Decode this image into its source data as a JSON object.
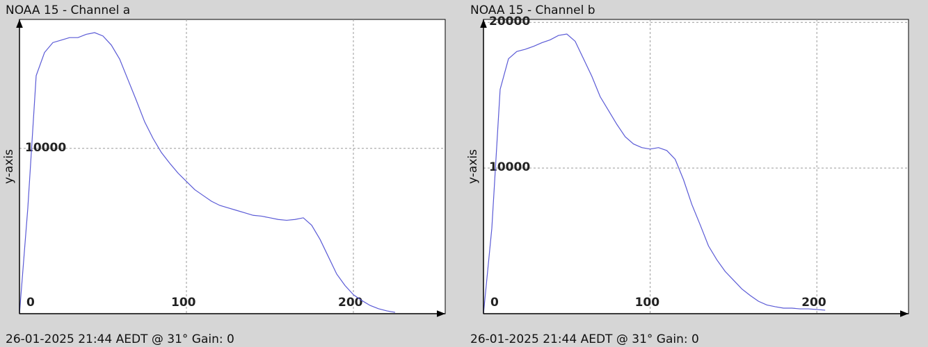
{
  "chart_data": [
    {
      "type": "line",
      "title": "NOAA 15 - Channel a",
      "ylabel": "y-axis",
      "footer": "26-01-2025 21:44 AEDT @ 31° Gain: 0",
      "x": [
        0,
        5,
        10,
        15,
        20,
        25,
        30,
        35,
        40,
        45,
        50,
        55,
        60,
        65,
        70,
        75,
        80,
        85,
        90,
        95,
        100,
        105,
        110,
        115,
        120,
        125,
        130,
        135,
        140,
        145,
        150,
        155,
        160,
        165,
        170,
        175,
        180,
        185,
        190,
        195,
        200,
        205,
        210,
        215,
        220,
        225
      ],
      "series": [
        {
          "color": "#5a5ad6",
          "values": [
            0,
            6400,
            14400,
            15800,
            16400,
            16550,
            16700,
            16700,
            16900,
            17000,
            16800,
            16250,
            15400,
            14150,
            12900,
            11600,
            10600,
            9750,
            9100,
            8500,
            8000,
            7500,
            7150,
            6800,
            6550,
            6400,
            6250,
            6100,
            5950,
            5900,
            5800,
            5700,
            5650,
            5700,
            5800,
            5350,
            4500,
            3450,
            2400,
            1700,
            1150,
            800,
            500,
            300,
            170,
            80
          ]
        }
      ],
      "xlim": [
        0,
        255
      ],
      "ylim": [
        0,
        17800
      ],
      "xticks": [
        0,
        100,
        200
      ],
      "yticks": [
        10000
      ],
      "grid": true
    },
    {
      "type": "line",
      "title": "NOAA 15 - Channel b",
      "ylabel": "y-axis",
      "footer": "26-01-2025 21:44 AEDT @ 31° Gain: 0",
      "x": [
        0,
        5,
        10,
        15,
        20,
        25,
        30,
        35,
        40,
        45,
        50,
        55,
        60,
        65,
        70,
        75,
        80,
        85,
        90,
        95,
        100,
        105,
        110,
        115,
        120,
        125,
        130,
        135,
        140,
        145,
        150,
        155,
        160,
        165,
        170,
        175,
        180,
        185,
        190,
        195,
        200,
        205
      ],
      "series": [
        {
          "color": "#5a5ad6",
          "values": [
            0,
            5850,
            15400,
            17500,
            18000,
            18150,
            18350,
            18600,
            18800,
            19100,
            19200,
            18700,
            17500,
            16300,
            14900,
            13950,
            13000,
            12150,
            11650,
            11400,
            11300,
            11400,
            11200,
            10600,
            9200,
            7500,
            6100,
            4650,
            3700,
            2900,
            2300,
            1700,
            1250,
            850,
            600,
            480,
            380,
            380,
            330,
            330,
            290,
            240
          ]
        }
      ],
      "xlim": [
        0,
        255
      ],
      "ylim": [
        0,
        20200
      ],
      "xticks": [
        0,
        100,
        200
      ],
      "yticks": [
        10000,
        20000
      ],
      "grid": true
    }
  ]
}
